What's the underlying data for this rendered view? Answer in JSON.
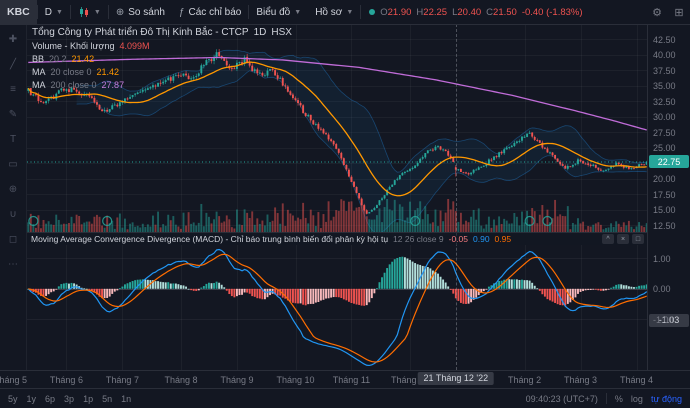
{
  "toolbar": {
    "symbol": "KBC",
    "interval": "D",
    "compare": "So sánh",
    "indicators": "Các chỉ báo",
    "chart_menu": "Biểu đồ",
    "profile_menu": "Hồ sơ",
    "ohlc": {
      "o_label": "O",
      "o": "21.90",
      "h_label": "H",
      "h": "22.25",
      "l_label": "L",
      "l": "20.40",
      "c_label": "C",
      "c": "21.50",
      "change": "-0.40 (-1.83%)"
    }
  },
  "legend": {
    "symbol_title": "Tổng Công ty Phát triển Đô Thị Kinh Bắc - CTCP",
    "interval": "1D",
    "exchange": "HSX",
    "volume_label": "Volume - Khối lượng",
    "volume_value": "4.099M",
    "bb": {
      "label": "BB",
      "params": "20 2",
      "value": "21.42"
    },
    "ma20": {
      "label": "MA",
      "params": "20 close 0",
      "value": "21.42"
    },
    "ma200": {
      "label": "MA",
      "params": "200 close 0",
      "value": "27.87"
    }
  },
  "macd_pane": {
    "title": "Moving Average Convergence Divergence (MACD) - Chỉ báo trung bình biến đổi phân kỳ hội tụ",
    "params": "12 26 close 9",
    "hist_value": "-0.05",
    "macd_value": "0.90",
    "signal_value": "0.95"
  },
  "bottom_bar": {
    "ranges": [
      "5y",
      "1y",
      "6p",
      "3p",
      "1p",
      "5n",
      "1n"
    ],
    "clock": "09:40:23 (UTC+7)",
    "percent": "%",
    "log": "log",
    "auto": "tự động"
  },
  "left_toolbar": {
    "tools": [
      {
        "name": "cursor-tool-icon",
        "glyph": "✚"
      },
      {
        "name": "trendline-tool-icon",
        "glyph": "╱"
      },
      {
        "name": "fib-tool-icon",
        "glyph": "≡"
      },
      {
        "name": "brush-tool-icon",
        "glyph": "✎"
      },
      {
        "name": "text-tool-icon",
        "glyph": "T"
      },
      {
        "name": "shapes-tool-icon",
        "glyph": "▭"
      },
      {
        "name": "measure-tool-icon",
        "glyph": "⊕"
      },
      {
        "name": "magnet-tool-icon",
        "glyph": "∪"
      },
      {
        "name": "lock-tool-icon",
        "glyph": "◻"
      },
      {
        "name": "more-tools-icon",
        "glyph": "⋯"
      }
    ]
  },
  "chart_data": {
    "type": "candlestick",
    "title": "KBC 1D HSX",
    "bar_count": 244,
    "ylim": [
      11.45,
      45.0
    ],
    "y_axis_ticks": [
      "42.50",
      "40.00",
      "37.50",
      "35.00",
      "32.50",
      "30.00",
      "27.50",
      "25.00",
      "20.00",
      "17.50",
      "15.00",
      "12.50"
    ],
    "y_gridlines": [
      42.5,
      40,
      37.5,
      35,
      32.5,
      30,
      27.5,
      25,
      22.5,
      20,
      17.5,
      15,
      12.5
    ],
    "last_close": 22.75,
    "price_anchors": [
      [
        0,
        34.2
      ],
      [
        6,
        32.0
      ],
      [
        14,
        34.6
      ],
      [
        22,
        33.8
      ],
      [
        30,
        30.8
      ],
      [
        38,
        32.8
      ],
      [
        46,
        34.2
      ],
      [
        54,
        35.8
      ],
      [
        60,
        37.0
      ],
      [
        64,
        36.2
      ],
      [
        70,
        38.8
      ],
      [
        75,
        40.3
      ],
      [
        80,
        37.8
      ],
      [
        85,
        39.2
      ],
      [
        90,
        36.8
      ],
      [
        96,
        37.6
      ],
      [
        102,
        34.2
      ],
      [
        107,
        31.5
      ],
      [
        112,
        29.0
      ],
      [
        117,
        27.2
      ],
      [
        123,
        23.5
      ],
      [
        128,
        18.5
      ],
      [
        133,
        14.3
      ],
      [
        137,
        15.8
      ],
      [
        142,
        18.8
      ],
      [
        147,
        20.8
      ],
      [
        152,
        22.3
      ],
      [
        158,
        24.8
      ],
      [
        161,
        25.2
      ],
      [
        165,
        24.0
      ],
      [
        168,
        21.7
      ],
      [
        172,
        20.8
      ],
      [
        177,
        21.6
      ],
      [
        182,
        23.2
      ],
      [
        188,
        24.8
      ],
      [
        193,
        26.2
      ],
      [
        197,
        27.5
      ],
      [
        202,
        25.2
      ],
      [
        207,
        23.2
      ],
      [
        211,
        21.8
      ],
      [
        216,
        23.0
      ],
      [
        221,
        22.2
      ],
      [
        226,
        21.4
      ],
      [
        231,
        22.4
      ],
      [
        236,
        21.8
      ],
      [
        240,
        22.1
      ],
      [
        243,
        22.75
      ]
    ],
    "ma200_anchors": [
      [
        0,
        38.8
      ],
      [
        40,
        39.3
      ],
      [
        75,
        39.6
      ],
      [
        100,
        39.2
      ],
      [
        130,
        38.0
      ],
      [
        160,
        36.0
      ],
      [
        190,
        33.5
      ],
      [
        215,
        31.0
      ],
      [
        230,
        29.4
      ],
      [
        243,
        27.9
      ]
    ],
    "bb": {
      "length": 20,
      "mult": 2
    },
    "ma20_length": 20,
    "crosshair": {
      "index": 168,
      "o": 21.9,
      "h": 22.25,
      "l": 20.4,
      "c": 21.5,
      "date_label": "21 Tháng 12 '22"
    },
    "volume_marker_indices": [
      2,
      31,
      152,
      197,
      204
    ],
    "months": [
      {
        "label": "Tháng 5",
        "i": -7
      },
      {
        "label": "Tháng 6",
        "i": 15
      },
      {
        "label": "Tháng 7",
        "i": 37
      },
      {
        "label": "Tháng 8",
        "i": 60
      },
      {
        "label": "Tháng 9",
        "i": 82
      },
      {
        "label": "Tháng 10",
        "i": 105
      },
      {
        "label": "Tháng 11",
        "i": 127
      },
      {
        "label": "Tháng 12",
        "i": 150
      },
      {
        "label": "Tháng 2",
        "i": 195
      },
      {
        "label": "Tháng 3",
        "i": 217
      },
      {
        "label": "Tháng 4",
        "i": 239
      }
    ],
    "macd": {
      "fast": 12,
      "slow": 26,
      "signal_len": 9,
      "axis_ticks": [
        "1.00",
        "0.00",
        "-1.00"
      ],
      "last": "-1.03"
    },
    "colors": {
      "up": "#26a69a",
      "down": "#ef5350",
      "ma20": "#ff9800",
      "ma200": "#c06cd8",
      "bb": "#2196f3",
      "macd_line": "#2196f3",
      "signal_line": "#ff6d00",
      "hist_grow_above": "#26a69a",
      "hist_fall_above": "#b2dfdb",
      "hist_grow_below": "#f8b9bb",
      "hist_fall_below": "#ef5350",
      "grid": "rgba(255,255,255,0.045)",
      "axis_text": "#787b86"
    }
  }
}
